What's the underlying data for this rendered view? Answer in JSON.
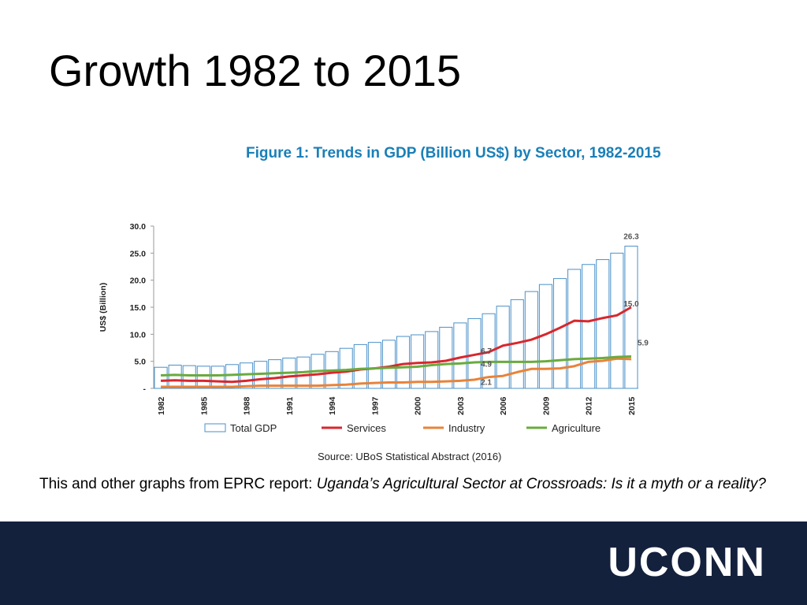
{
  "slide": {
    "title": "Growth 1982 to 2015",
    "caption_plain": "This and other graphs from EPRC report: ",
    "caption_italic": "Uganda’s Agricultural Sector at Crossroads: Is it a myth or a reality?"
  },
  "figure": {
    "title": "Figure 1: Trends in GDP (Billion US$) by Sector, 1982-2015",
    "source": "Source: UBoS Statistical Abstract (2016)"
  },
  "footer": {
    "logo_text": "UCONN",
    "bg_color": "#14213d"
  },
  "chart_data": {
    "type": "bar+line",
    "title": "Figure 1: Trends in GDP (Billion US$) by Sector, 1982-2015",
    "ylabel": "US$ (Billion)",
    "xlabel": "",
    "ylim": [
      0,
      30
    ],
    "yticks": [
      "-",
      "5.0",
      "10.0",
      "15.0",
      "20.0",
      "25.0",
      "30.0"
    ],
    "ytick_values": [
      0,
      5,
      10,
      15,
      20,
      25,
      30
    ],
    "x": [
      1982,
      1983,
      1984,
      1985,
      1986,
      1987,
      1988,
      1989,
      1990,
      1991,
      1992,
      1993,
      1994,
      1995,
      1996,
      1997,
      1998,
      1999,
      2000,
      2001,
      2002,
      2003,
      2004,
      2005,
      2006,
      2007,
      2008,
      2009,
      2010,
      2011,
      2012,
      2013,
      2014,
      2015
    ],
    "xtick_labels": [
      "1982",
      "1985",
      "1988",
      "1991",
      "1994",
      "1997",
      "2000",
      "2003",
      "2006",
      "2009",
      "2012",
      "2015"
    ],
    "legend_position": "bottom",
    "series": [
      {
        "name": "Total GDP",
        "kind": "bar",
        "color": "#4a90c8",
        "values": [
          3.9,
          4.3,
          4.2,
          4.1,
          4.1,
          4.4,
          4.7,
          5.0,
          5.3,
          5.6,
          5.8,
          6.3,
          6.8,
          7.4,
          8.1,
          8.5,
          8.9,
          9.6,
          9.9,
          10.5,
          11.3,
          12.1,
          12.9,
          13.8,
          15.2,
          16.4,
          17.9,
          19.2,
          20.3,
          22.0,
          22.9,
          23.8,
          25.0,
          26.3
        ]
      },
      {
        "name": "Services",
        "kind": "line",
        "color": "#d8272e",
        "values": [
          1.4,
          1.5,
          1.4,
          1.4,
          1.3,
          1.2,
          1.4,
          1.7,
          1.9,
          2.2,
          2.4,
          2.6,
          2.9,
          3.1,
          3.5,
          3.7,
          4.0,
          4.5,
          4.7,
          4.8,
          5.1,
          5.7,
          6.2,
          6.7,
          7.9,
          8.4,
          9.0,
          10.0,
          11.2,
          12.5,
          12.4,
          13.0,
          13.5,
          15.0
        ]
      },
      {
        "name": "Industry",
        "kind": "line",
        "color": "#e8833a",
        "values": [
          0.3,
          0.3,
          0.3,
          0.3,
          0.3,
          0.3,
          0.4,
          0.5,
          0.5,
          0.5,
          0.5,
          0.5,
          0.6,
          0.7,
          0.9,
          1.0,
          1.1,
          1.1,
          1.2,
          1.2,
          1.3,
          1.4,
          1.6,
          2.1,
          2.3,
          3.0,
          3.6,
          3.6,
          3.7,
          4.1,
          4.9,
          5.1,
          5.5,
          5.4
        ]
      },
      {
        "name": "Agriculture",
        "kind": "line",
        "color": "#6aab3e",
        "values": [
          2.4,
          2.5,
          2.4,
          2.4,
          2.4,
          2.5,
          2.6,
          2.7,
          2.8,
          2.9,
          3.0,
          3.2,
          3.3,
          3.4,
          3.6,
          3.7,
          3.8,
          3.9,
          4.0,
          4.3,
          4.5,
          4.6,
          4.8,
          4.9,
          4.9,
          4.9,
          4.9,
          5.0,
          5.2,
          5.4,
          5.5,
          5.6,
          5.8,
          5.9
        ]
      }
    ],
    "annotations": [
      {
        "text": "26.3",
        "series": "Total GDP",
        "x": 2015,
        "y": 26.3
      },
      {
        "text": "15.0",
        "series": "Services",
        "x": 2015,
        "y": 15.0
      },
      {
        "text": "5.9",
        "series": "Agriculture",
        "x": 2015,
        "y": 5.9
      },
      {
        "text": "6.7",
        "series": "Services",
        "x": 2005,
        "y": 6.7
      },
      {
        "text": "4.9",
        "series": "Agriculture",
        "x": 2005,
        "y": 4.9
      },
      {
        "text": "2.1",
        "series": "Industry",
        "x": 2005,
        "y": 2.1
      }
    ]
  }
}
